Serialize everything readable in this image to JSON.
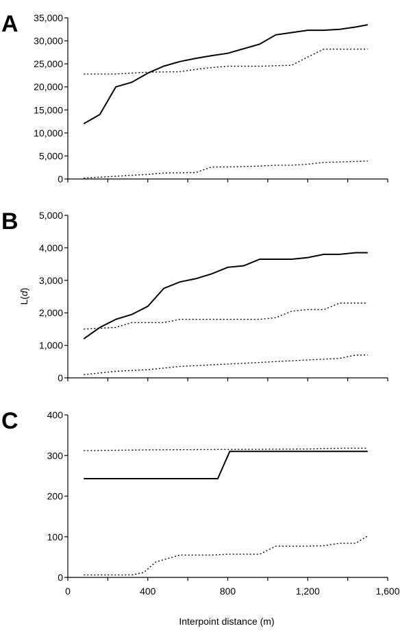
{
  "figure": {
    "xlabel": "Interpoint distance (m)",
    "ylabel_prefix": "L(",
    "ylabel_var": "d",
    "ylabel_suffix": ")",
    "x_ticks": [
      "0",
      "400",
      "800",
      "1,200",
      "1,600"
    ]
  },
  "chart_data": [
    {
      "type": "line",
      "panel": "A",
      "xlim": [
        0,
        1600
      ],
      "ylim": [
        0,
        35000
      ],
      "y_ticks": [
        "0",
        "5,000",
        "10,000",
        "15,000",
        "20,000",
        "25,000",
        "30,000",
        "35,000"
      ],
      "series": [
        {
          "style": "solid",
          "x": [
            80,
            160,
            240,
            320,
            400,
            480,
            560,
            640,
            720,
            800,
            880,
            960,
            1040,
            1120,
            1200,
            1280,
            1360,
            1440,
            1500
          ],
          "y": [
            12000,
            14000,
            20000,
            21000,
            23000,
            24500,
            25500,
            26200,
            26800,
            27300,
            28300,
            29300,
            31300,
            31800,
            32300,
            32300,
            32500,
            33000,
            33500
          ]
        },
        {
          "style": "dotted",
          "x": [
            80,
            240,
            400,
            560,
            640,
            720,
            800,
            960,
            1120,
            1200,
            1280,
            1360,
            1500
          ],
          "y": [
            22800,
            22800,
            23200,
            23300,
            23800,
            24200,
            24500,
            24500,
            24700,
            26500,
            28200,
            28200,
            28200
          ]
        },
        {
          "style": "dotted",
          "x": [
            80,
            240,
            400,
            480,
            640,
            720,
            800,
            960,
            1040,
            1120,
            1200,
            1280,
            1360,
            1500
          ],
          "y": [
            200,
            600,
            1000,
            1300,
            1400,
            2600,
            2600,
            2800,
            3000,
            3000,
            3200,
            3600,
            3700,
            3900
          ]
        }
      ]
    },
    {
      "type": "line",
      "panel": "B",
      "xlim": [
        0,
        1600
      ],
      "ylim": [
        0,
        5000
      ],
      "y_ticks": [
        "0",
        "1,000",
        "2,000",
        "3,000",
        "4,000",
        "5,000"
      ],
      "series": [
        {
          "style": "solid",
          "x": [
            80,
            160,
            240,
            320,
            400,
            480,
            560,
            640,
            720,
            800,
            880,
            960,
            1040,
            1120,
            1200,
            1280,
            1360,
            1440,
            1500
          ],
          "y": [
            1200,
            1550,
            1800,
            1950,
            2200,
            2750,
            2950,
            3050,
            3200,
            3400,
            3450,
            3650,
            3650,
            3650,
            3700,
            3800,
            3800,
            3850,
            3850
          ]
        },
        {
          "style": "dotted",
          "x": [
            80,
            240,
            320,
            480,
            560,
            640,
            800,
            960,
            1040,
            1120,
            1200,
            1280,
            1360,
            1500
          ],
          "y": [
            1500,
            1550,
            1700,
            1700,
            1800,
            1800,
            1800,
            1800,
            1850,
            2050,
            2100,
            2100,
            2300,
            2300
          ]
        },
        {
          "style": "dotted",
          "x": [
            80,
            240,
            400,
            560,
            720,
            880,
            1040,
            1200,
            1360,
            1440,
            1500
          ],
          "y": [
            100,
            200,
            250,
            350,
            400,
            450,
            500,
            550,
            600,
            700,
            700
          ]
        }
      ]
    },
    {
      "type": "line",
      "panel": "C",
      "xlim": [
        0,
        1600
      ],
      "ylim": [
        0,
        400
      ],
      "y_ticks": [
        "0",
        "100",
        "200",
        "300",
        "400"
      ],
      "series": [
        {
          "style": "solid",
          "x": [
            80,
            750,
            810,
            1500
          ],
          "y": [
            243,
            243,
            310,
            310
          ]
        },
        {
          "style": "dotted",
          "x": [
            80,
            400,
            800,
            1200,
            1380,
            1500
          ],
          "y": [
            312,
            314,
            315,
            316,
            318,
            318
          ]
        },
        {
          "style": "dotted",
          "x": [
            80,
            320,
            380,
            440,
            560,
            720,
            800,
            960,
            1040,
            1120,
            1200,
            1280,
            1360,
            1440,
            1500
          ],
          "y": [
            6,
            6,
            12,
            38,
            55,
            55,
            57,
            57,
            77,
            77,
            77,
            78,
            84,
            84,
            102
          ]
        }
      ]
    }
  ]
}
